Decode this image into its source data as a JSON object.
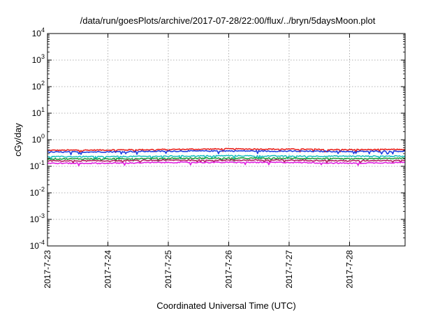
{
  "chart_data": {
    "type": "line",
    "title": "/data/run/goesPlots/archive/2017-07-28/22:00/flux/../bryn/5daysMoon.plot",
    "xlabel": "Coordinated Universal Time (UTC)",
    "ylabel": "cGy/day",
    "yscale": "log",
    "ylim": [
      0.0001,
      10000
    ],
    "xlim": [
      "2017-07-23",
      "2017-07-28 22:00"
    ],
    "x_ticks": [
      "2017-7-23",
      "2017-7-24",
      "2017-7-25",
      "2017-7-26",
      "2017-7-27",
      "2017-7-28"
    ],
    "y_ticks": [
      {
        "value": 10000,
        "base": "10",
        "exp": "4"
      },
      {
        "value": 1000,
        "base": "10",
        "exp": "3"
      },
      {
        "value": 100,
        "base": "10",
        "exp": "2"
      },
      {
        "value": 10,
        "base": "10",
        "exp": "1"
      },
      {
        "value": 1,
        "base": "10",
        "exp": "0"
      },
      {
        "value": 0.1,
        "base": "10",
        "exp": "-1"
      },
      {
        "value": 0.01,
        "base": "10",
        "exp": "-2"
      },
      {
        "value": 0.001,
        "base": "10",
        "exp": "-3"
      },
      {
        "value": 0.0001,
        "base": "10",
        "exp": "-4"
      }
    ],
    "grid": true,
    "x_days": [
      0,
      1,
      2,
      3,
      4,
      5,
      5.92
    ],
    "series": [
      {
        "color": "#e8231e",
        "values": [
          0.4,
          0.41,
          0.43,
          0.45,
          0.44,
          0.42,
          0.43
        ]
      },
      {
        "color": "#2040e0",
        "values": [
          0.34,
          0.35,
          0.37,
          0.38,
          0.37,
          0.36,
          0.37
        ]
      },
      {
        "color": "#20c0c0",
        "values": [
          0.23,
          0.23,
          0.24,
          0.25,
          0.24,
          0.24,
          0.24
        ]
      },
      {
        "color": "#20a040",
        "values": [
          0.19,
          0.19,
          0.2,
          0.2,
          0.2,
          0.19,
          0.2
        ]
      },
      {
        "color": "#b02060",
        "values": [
          0.16,
          0.16,
          0.17,
          0.17,
          0.17,
          0.16,
          0.17
        ]
      },
      {
        "color": "#e020e0",
        "values": [
          0.13,
          0.13,
          0.14,
          0.14,
          0.14,
          0.13,
          0.14
        ]
      }
    ]
  }
}
